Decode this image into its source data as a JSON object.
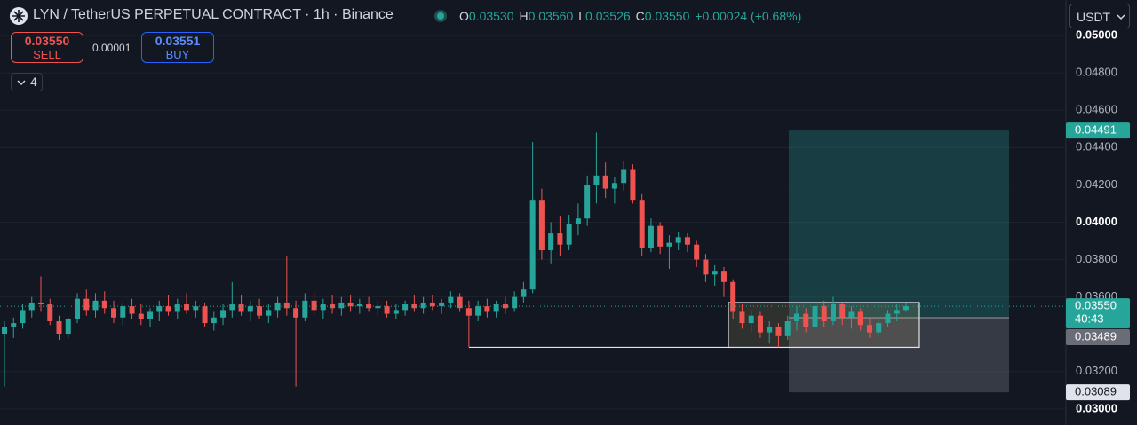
{
  "header": {
    "symbol": "LYN / TetherUS PERPETUAL CONTRACT · 1h · Binance",
    "ohlc": [
      {
        "key": "O",
        "value": "0.03530"
      },
      {
        "key": "H",
        "value": "0.03560"
      },
      {
        "key": "L",
        "value": "0.03526"
      },
      {
        "key": "C",
        "value": "0.03550"
      }
    ],
    "change": "+0.00024 (+0.68%)"
  },
  "trade_panel": {
    "sell_price": "0.03550",
    "sell_label": "SELL",
    "spread": "0.00001",
    "buy_price": "0.03551",
    "buy_label": "BUY",
    "indicators": "4"
  },
  "currency": "USDT",
  "chart_data": {
    "type": "candlestick",
    "up_color": "#26a69a",
    "down_color": "#ef5350",
    "grid": true,
    "ylim": [
      0.02914,
      0.0519
    ],
    "yticks": [
      {
        "value": 0.03,
        "label": "0.03000"
      },
      {
        "value": 0.032,
        "label": "0.03200"
      },
      {
        "value": 0.036,
        "label": "0.03600"
      },
      {
        "value": 0.038,
        "label": "0.03800"
      },
      {
        "value": 0.04,
        "label": "0.04000"
      },
      {
        "value": 0.042,
        "label": "0.04200"
      },
      {
        "value": 0.044,
        "label": "0.04400"
      },
      {
        "value": 0.046,
        "label": "0.04600"
      },
      {
        "value": 0.048,
        "label": "0.04800"
      },
      {
        "value": 0.05,
        "label": "0.05000"
      }
    ],
    "open": [
      0.034,
      0.0344,
      0.0346,
      0.0353,
      0.0357,
      0.0356,
      0.0347,
      0.034,
      0.0348,
      0.0359,
      0.0353,
      0.0358,
      0.0354,
      0.0349,
      0.0355,
      0.0351,
      0.0348,
      0.0352,
      0.0355,
      0.0352,
      0.0356,
      0.0353,
      0.0355,
      0.0346,
      0.0349,
      0.0353,
      0.0356,
      0.0352,
      0.0355,
      0.035,
      0.0353,
      0.0357,
      0.0354,
      0.0349,
      0.0358,
      0.0353,
      0.0356,
      0.0354,
      0.0357,
      0.0355,
      0.0356,
      0.0354,
      0.0355,
      0.0351,
      0.0353,
      0.0356,
      0.0354,
      0.0357,
      0.0355,
      0.0357,
      0.036,
      0.0354,
      0.035,
      0.0355,
      0.0352,
      0.0356,
      0.0354,
      0.036,
      0.0364,
      0.0412,
      0.0385,
      0.0394,
      0.0388,
      0.0399,
      0.0402,
      0.042,
      0.0425,
      0.0418,
      0.0421,
      0.0428,
      0.0412,
      0.0386,
      0.0398,
      0.0387,
      0.0389,
      0.0392,
      0.0388,
      0.038,
      0.0372,
      0.0374,
      0.0368,
      0.0352,
      0.0346,
      0.035,
      0.0341,
      0.0344,
      0.0339,
      0.0347,
      0.0351,
      0.0344,
      0.0355,
      0.0347,
      0.0356,
      0.0349,
      0.0352,
      0.0345,
      0.0341,
      0.0346,
      0.0351,
      0.0353
    ],
    "high": [
      0.0347,
      0.0349,
      0.0356,
      0.036,
      0.0371,
      0.0359,
      0.035,
      0.0349,
      0.0362,
      0.0364,
      0.0362,
      0.0363,
      0.0358,
      0.0357,
      0.0359,
      0.0356,
      0.0354,
      0.0358,
      0.0361,
      0.0359,
      0.0362,
      0.0358,
      0.0357,
      0.0352,
      0.0356,
      0.0368,
      0.0361,
      0.0358,
      0.0359,
      0.0356,
      0.036,
      0.0382,
      0.0358,
      0.0362,
      0.0363,
      0.0359,
      0.0361,
      0.036,
      0.0361,
      0.0359,
      0.036,
      0.0358,
      0.0358,
      0.0356,
      0.0358,
      0.0361,
      0.036,
      0.0361,
      0.0359,
      0.0363,
      0.0362,
      0.0358,
      0.0358,
      0.0359,
      0.0358,
      0.036,
      0.0363,
      0.0368,
      0.0443,
      0.0418,
      0.04,
      0.0403,
      0.0404,
      0.041,
      0.0425,
      0.0448,
      0.0432,
      0.0424,
      0.0433,
      0.0431,
      0.0415,
      0.0402,
      0.04,
      0.0393,
      0.0395,
      0.0394,
      0.039,
      0.0383,
      0.0377,
      0.0376,
      0.0369,
      0.0356,
      0.0353,
      0.0352,
      0.0347,
      0.0346,
      0.035,
      0.0355,
      0.0354,
      0.0357,
      0.0358,
      0.036,
      0.0357,
      0.0355,
      0.0354,
      0.0349,
      0.0348,
      0.0353,
      0.0356,
      0.0357
    ],
    "low": [
      0.0312,
      0.0338,
      0.0343,
      0.0349,
      0.0352,
      0.0345,
      0.0337,
      0.0338,
      0.0346,
      0.035,
      0.0349,
      0.0351,
      0.0346,
      0.0345,
      0.0348,
      0.0345,
      0.0344,
      0.0347,
      0.035,
      0.0348,
      0.0351,
      0.0349,
      0.0344,
      0.0342,
      0.0345,
      0.0349,
      0.035,
      0.0347,
      0.0348,
      0.0346,
      0.0349,
      0.035,
      0.0312,
      0.0347,
      0.035,
      0.0348,
      0.0351,
      0.035,
      0.0352,
      0.0351,
      0.0352,
      0.035,
      0.0349,
      0.0348,
      0.035,
      0.0352,
      0.0351,
      0.0353,
      0.0351,
      0.0354,
      0.0352,
      0.0333,
      0.0347,
      0.0349,
      0.0349,
      0.0351,
      0.0352,
      0.0357,
      0.0362,
      0.038,
      0.0378,
      0.0382,
      0.0385,
      0.0393,
      0.0398,
      0.041,
      0.0413,
      0.041,
      0.0417,
      0.041,
      0.0382,
      0.0384,
      0.0383,
      0.0375,
      0.0385,
      0.0384,
      0.0376,
      0.0368,
      0.0366,
      0.036,
      0.0348,
      0.0343,
      0.0341,
      0.0338,
      0.0335,
      0.0333,
      0.0337,
      0.0342,
      0.0341,
      0.0342,
      0.0344,
      0.0345,
      0.0345,
      0.0343,
      0.0342,
      0.0338,
      0.0339,
      0.0344,
      0.0347,
      0.0352
    ],
    "close": [
      0.0344,
      0.0346,
      0.0353,
      0.0357,
      0.0356,
      0.0347,
      0.034,
      0.0348,
      0.0359,
      0.0353,
      0.0358,
      0.0354,
      0.0349,
      0.0355,
      0.0351,
      0.0348,
      0.0352,
      0.0355,
      0.0352,
      0.0356,
      0.0353,
      0.0355,
      0.0346,
      0.0349,
      0.0353,
      0.0356,
      0.0352,
      0.0355,
      0.035,
      0.0353,
      0.0357,
      0.0354,
      0.0349,
      0.0358,
      0.0353,
      0.0356,
      0.0354,
      0.0357,
      0.0355,
      0.0356,
      0.0354,
      0.0355,
      0.0351,
      0.0353,
      0.0356,
      0.0354,
      0.0357,
      0.0355,
      0.0357,
      0.036,
      0.0354,
      0.035,
      0.0355,
      0.0352,
      0.0356,
      0.0354,
      0.036,
      0.0364,
      0.0412,
      0.0385,
      0.0394,
      0.0388,
      0.0399,
      0.0402,
      0.042,
      0.0425,
      0.0418,
      0.0421,
      0.0428,
      0.0412,
      0.0386,
      0.0398,
      0.0387,
      0.0389,
      0.0392,
      0.0388,
      0.038,
      0.0372,
      0.0374,
      0.0368,
      0.0352,
      0.0346,
      0.035,
      0.0341,
      0.0344,
      0.0339,
      0.0347,
      0.0351,
      0.0344,
      0.0355,
      0.0347,
      0.0356,
      0.0349,
      0.0352,
      0.0345,
      0.0341,
      0.0346,
      0.0351,
      0.0353,
      0.0355
    ],
    "current_price": {
      "value": 0.0355,
      "label": "0.03550"
    },
    "countdown": "40:43",
    "position": {
      "target": 0.04491,
      "entry": 0.03489,
      "stop": 0.03089
    },
    "range_box": [
      0.0357,
      0.0333
    ],
    "support_line": 0.0333
  }
}
